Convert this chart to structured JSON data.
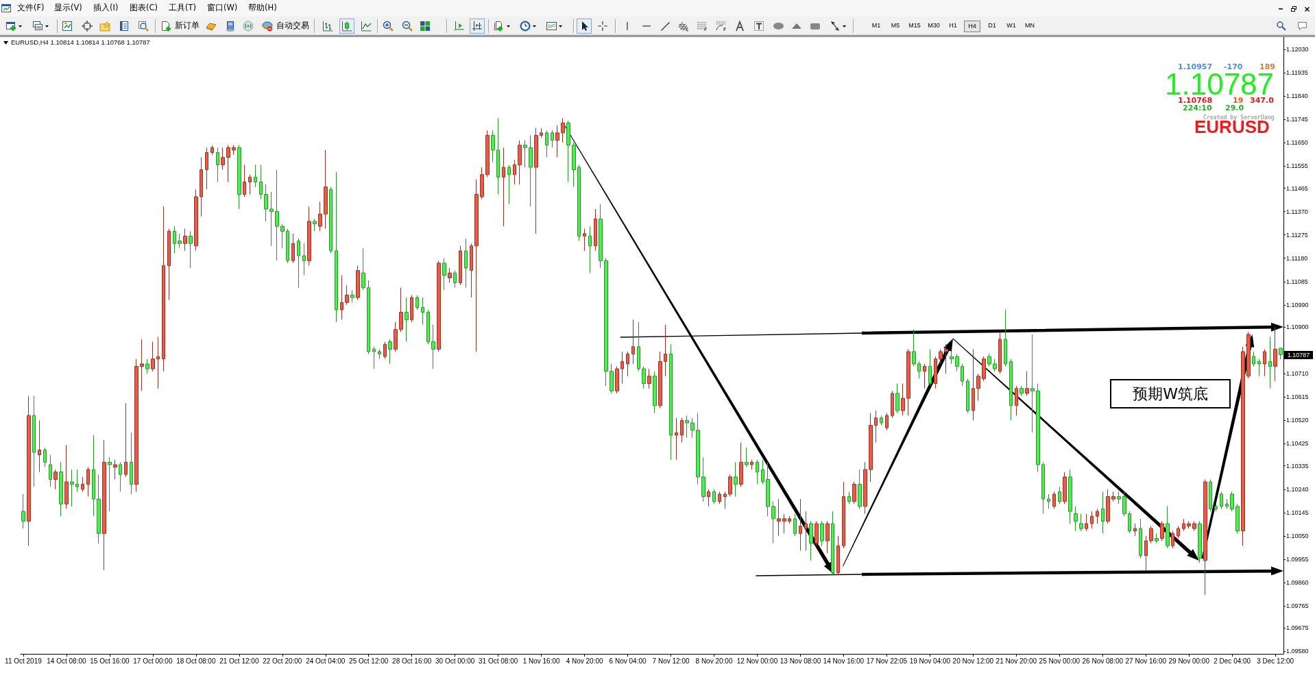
{
  "chart_data": {
    "type": "candlestick",
    "title": "EURUSD,H4 1.10814 1.10814 1.10768 1.10787",
    "categories": [
      "11 Oct 2019",
      null,
      null,
      null,
      null,
      null,
      null,
      null,
      "14 Oct 08:00",
      null,
      null,
      null,
      null,
      null,
      null,
      null,
      "15 Oct 16:00",
      null,
      null,
      null,
      null,
      null,
      null,
      null,
      "17 Oct 00:00",
      null,
      null,
      null,
      null,
      null,
      null,
      null,
      "18 Oct 08:00",
      null,
      null,
      null,
      null,
      null,
      null,
      null,
      "21 Oct 12:00",
      null,
      null,
      null,
      null,
      null,
      null,
      null,
      "22 Oct 20:00",
      null,
      null,
      null,
      null,
      null,
      null,
      null,
      "24 Oct 04:00",
      null,
      null,
      null,
      null,
      null,
      null,
      null,
      "25 Oct 12:00",
      null,
      null,
      null,
      null,
      null,
      null,
      null,
      "28 Oct 16:00",
      null,
      null,
      null,
      null,
      null,
      null,
      null,
      "30 Oct 00:00",
      null,
      null,
      null,
      null,
      null,
      null,
      null,
      "31 Oct 08:00",
      null,
      null,
      null,
      null,
      null,
      null,
      null,
      "1 Nov 16:00",
      null,
      null,
      null,
      null,
      null,
      null,
      null,
      "4 Nov 20:00",
      null,
      null,
      null,
      null,
      null,
      null,
      null,
      "6 Nov 04:00",
      null,
      null,
      null,
      null,
      null,
      null,
      null,
      "7 Nov 12:00",
      null,
      null,
      null,
      null,
      null,
      null,
      null,
      "8 Nov 20:00",
      null,
      null,
      null,
      null,
      null,
      null,
      null,
      "12 Nov 00:00",
      null,
      null,
      null,
      null,
      null,
      null,
      null,
      "13 Nov 08:00",
      null,
      null,
      null,
      null,
      null,
      null,
      null,
      "14 Nov 16:00",
      null,
      null,
      null,
      null,
      null,
      null,
      null,
      "17 Nov 22:05",
      null,
      null,
      null,
      null,
      null,
      null,
      null,
      "19 Nov 04:00",
      null,
      null,
      null,
      null,
      null,
      null,
      null,
      "20 Nov 12:00",
      null,
      null,
      null,
      null,
      null,
      null,
      null,
      "21 Nov 20:00",
      null,
      null,
      null,
      null,
      null,
      null,
      null,
      "25 Nov 00:00",
      null,
      null,
      null,
      null,
      null,
      null,
      null,
      "26 Nov 08:00",
      null,
      null,
      null,
      null,
      null,
      null,
      null,
      "27 Nov 16:00",
      null,
      null,
      null,
      null,
      null,
      null,
      null,
      "29 Nov 00:00",
      null,
      null,
      null,
      null,
      null,
      null,
      null,
      "2 Dec 04:00",
      null,
      null,
      null,
      null,
      null,
      null,
      null,
      "3 Dec 12:00",
      null
    ],
    "ohlc": [
      [
        1.1015,
        1.1022,
        1.1008,
        1.1011
      ],
      [
        1.1011,
        1.1062,
        1.1001,
        1.1054
      ],
      [
        1.1054,
        1.1062,
        1.1025,
        1.1039
      ],
      [
        1.1038,
        1.1052,
        1.1031,
        1.104
      ],
      [
        1.104,
        1.1041,
        1.1033,
        1.1035
      ],
      [
        1.1034,
        1.1038,
        1.1025,
        1.1028
      ],
      [
        1.1028,
        1.1032,
        1.1024,
        1.1031
      ],
      [
        1.1031,
        1.1035,
        1.1013,
        1.1018
      ],
      [
        1.1018,
        1.1042,
        1.1016,
        1.1027
      ],
      [
        1.1027,
        1.1032,
        1.1017,
        1.1026
      ],
      [
        1.1026,
        1.1032,
        1.1023,
        1.1025
      ],
      [
        1.1024,
        1.1029,
        1.1023,
        1.1026
      ],
      [
        1.1026,
        1.1033,
        1.1021,
        1.1032
      ],
      [
        1.1032,
        1.1046,
        1.1013,
        1.102
      ],
      [
        1.102,
        1.103,
        1.1002,
        1.1006
      ],
      [
        1.1006,
        1.1044,
        1.0991,
        1.1035
      ],
      [
        1.1035,
        1.1037,
        1.1015,
        1.1034
      ],
      [
        1.1033,
        1.1036,
        1.1028,
        1.1034
      ],
      [
        1.1034,
        1.1035,
        1.1023,
        1.103
      ],
      [
        1.103,
        1.1059,
        1.1029,
        1.1035
      ],
      [
        1.1035,
        1.1047,
        1.1022,
        1.1026
      ],
      [
        1.1026,
        1.1077,
        1.1023,
        1.1074
      ],
      [
        1.1074,
        1.1085,
        1.1064,
        1.1075
      ],
      [
        1.1075,
        1.1077,
        1.1071,
        1.1073
      ],
      [
        1.1073,
        1.1084,
        1.1072,
        1.1077
      ],
      [
        1.1077,
        1.1086,
        1.1065,
        1.1078
      ],
      [
        1.1077,
        1.1139,
        1.1072,
        1.1115
      ],
      [
        1.1115,
        1.113,
        1.1101,
        1.1129
      ],
      [
        1.1129,
        1.1131,
        1.112,
        1.1124
      ],
      [
        1.1125,
        1.1128,
        1.1122,
        1.1124
      ],
      [
        1.1124,
        1.113,
        1.1121,
        1.1127
      ],
      [
        1.1127,
        1.1129,
        1.1114,
        1.1124
      ],
      [
        1.1123,
        1.1146,
        1.1121,
        1.1143
      ],
      [
        1.1143,
        1.1159,
        1.1135,
        1.1154
      ],
      [
        1.1154,
        1.1163,
        1.1146,
        1.1161
      ],
      [
        1.1161,
        1.1164,
        1.116,
        1.1163
      ],
      [
        1.1161,
        1.1163,
        1.1149,
        1.1156
      ],
      [
        1.1156,
        1.1163,
        1.1154,
        1.1159
      ],
      [
        1.1159,
        1.1164,
        1.1149,
        1.1163
      ],
      [
        1.1162,
        1.1164,
        1.116,
        1.1163
      ],
      [
        1.1163,
        1.1164,
        1.1138,
        1.1144
      ],
      [
        1.1144,
        1.1156,
        1.1143,
        1.1149
      ],
      [
        1.1149,
        1.1152,
        1.1144,
        1.1151
      ],
      [
        1.1151,
        1.1156,
        1.1147,
        1.1149
      ],
      [
        1.1149,
        1.1156,
        1.1142,
        1.1144
      ],
      [
        1.1144,
        1.1148,
        1.1133,
        1.1138
      ],
      [
        1.1138,
        1.1145,
        1.1123,
        1.1137
      ],
      [
        1.1137,
        1.1154,
        1.1117,
        1.1131
      ],
      [
        1.1131,
        1.1132,
        1.1122,
        1.1129
      ],
      [
        1.1129,
        1.113,
        1.1116,
        1.1117
      ],
      [
        1.1117,
        1.1128,
        1.1116,
        1.1124
      ],
      [
        1.1125,
        1.1126,
        1.1106,
        1.1119
      ],
      [
        1.1119,
        1.1124,
        1.1111,
        1.1117
      ],
      [
        1.1117,
        1.1139,
        1.1115,
        1.1133
      ],
      [
        1.1133,
        1.1134,
        1.1129,
        1.1132
      ],
      [
        1.1131,
        1.1141,
        1.1129,
        1.1136
      ],
      [
        1.1136,
        1.1162,
        1.113,
        1.1147
      ],
      [
        1.1146,
        1.1147,
        1.112,
        1.1121
      ],
      [
        1.1121,
        1.1153,
        1.1092,
        1.1097
      ],
      [
        1.1097,
        1.1111,
        1.1093,
        1.11
      ],
      [
        1.11,
        1.1107,
        1.1099,
        1.1103
      ],
      [
        1.1103,
        1.1105,
        1.11,
        1.1102
      ],
      [
        1.1102,
        1.1115,
        1.1101,
        1.1113
      ],
      [
        1.1112,
        1.1122,
        1.1105,
        1.1106
      ],
      [
        1.1106,
        1.1109,
        1.1079,
        1.108
      ],
      [
        1.1081,
        1.1082,
        1.1073,
        1.108
      ],
      [
        1.108,
        1.1081,
        1.1077,
        1.1079
      ],
      [
        1.1078,
        1.1084,
        1.1077,
        1.1083
      ],
      [
        1.1084,
        1.1085,
        1.1075,
        1.1081
      ],
      [
        1.1081,
        1.1092,
        1.108,
        1.1089
      ],
      [
        1.1089,
        1.1106,
        1.1088,
        1.1096
      ],
      [
        1.1096,
        1.1102,
        1.1084,
        1.1093
      ],
      [
        1.1093,
        1.1103,
        1.1092,
        1.1102
      ],
      [
        1.1102,
        1.1103,
        1.1097,
        1.1098
      ],
      [
        1.1098,
        1.1102,
        1.1091,
        1.1096
      ],
      [
        1.1096,
        1.1097,
        1.1083,
        1.1084
      ],
      [
        1.1084,
        1.1091,
        1.1073,
        1.1081
      ],
      [
        1.1081,
        1.1117,
        1.108,
        1.1116
      ],
      [
        1.1116,
        1.1118,
        1.1105,
        1.1111
      ],
      [
        1.111,
        1.1114,
        1.1108,
        1.1112
      ],
      [
        1.1112,
        1.1113,
        1.1106,
        1.1108
      ],
      [
        1.1108,
        1.1123,
        1.1107,
        1.1121
      ],
      [
        1.1121,
        1.1126,
        1.1106,
        1.1114
      ],
      [
        1.1113,
        1.1124,
        1.1102,
        1.1123
      ],
      [
        1.1123,
        1.115,
        1.108,
        1.1144
      ],
      [
        1.1143,
        1.1155,
        1.1142,
        1.1152
      ],
      [
        1.1152,
        1.117,
        1.1151,
        1.1168
      ],
      [
        1.1168,
        1.117,
        1.1157,
        1.1162
      ],
      [
        1.1162,
        1.1175,
        1.1144,
        1.1151
      ],
      [
        1.1151,
        1.1163,
        1.1131,
        1.1155
      ],
      [
        1.1155,
        1.1156,
        1.114,
        1.1152
      ],
      [
        1.1152,
        1.1158,
        1.1148,
        1.1156
      ],
      [
        1.1156,
        1.1166,
        1.1148,
        1.1164
      ],
      [
        1.1164,
        1.1166,
        1.1155,
        1.1163
      ],
      [
        1.1163,
        1.1168,
        1.1139,
        1.1155
      ],
      [
        1.1155,
        1.1171,
        1.1128,
        1.1168
      ],
      [
        1.1168,
        1.1171,
        1.1167,
        1.1169
      ],
      [
        1.1169,
        1.117,
        1.1159,
        1.1164
      ],
      [
        1.1169,
        1.117,
        1.1163,
        1.1166
      ],
      [
        1.1166,
        1.1172,
        1.1159,
        1.1169
      ],
      [
        1.1169,
        1.1175,
        1.1165,
        1.1173
      ],
      [
        1.1173,
        1.1174,
        1.1149,
        1.1164
      ],
      [
        1.1164,
        1.1165,
        1.1147,
        1.1154
      ],
      [
        1.1155,
        1.1156,
        1.1125,
        1.1127
      ],
      [
        1.1127,
        1.113,
        1.1121,
        1.1128
      ],
      [
        1.1127,
        1.1131,
        1.1112,
        1.1123
      ],
      [
        1.1123,
        1.1138,
        1.1121,
        1.1134
      ],
      [
        1.1134,
        1.114,
        1.1114,
        1.1117
      ],
      [
        1.1117,
        1.1118,
        1.1066,
        1.1072
      ],
      [
        1.1072,
        1.1075,
        1.1063,
        1.1064
      ],
      [
        1.1064,
        1.1074,
        1.1063,
        1.1073
      ],
      [
        1.1073,
        1.108,
        1.1067,
        1.1076
      ],
      [
        1.1075,
        1.108,
        1.107,
        1.1079
      ],
      [
        1.1079,
        1.1093,
        1.1075,
        1.1082
      ],
      [
        1.1082,
        1.1092,
        1.1072,
        1.1073
      ],
      [
        1.1073,
        1.1074,
        1.1065,
        1.1067
      ],
      [
        1.1067,
        1.1073,
        1.1065,
        1.107
      ],
      [
        1.107,
        1.1072,
        1.1055,
        1.1058
      ],
      [
        1.1058,
        1.108,
        1.1057,
        1.1076
      ],
      [
        1.1076,
        1.1091,
        1.107,
        1.1079
      ],
      [
        1.1079,
        1.1083,
        1.1036,
        1.1046
      ],
      [
        1.1046,
        1.1053,
        1.1036,
        1.1047
      ],
      [
        1.1046,
        1.1053,
        1.1043,
        1.1052
      ],
      [
        1.1052,
        1.1054,
        1.1045,
        1.1051
      ],
      [
        1.1051,
        1.1053,
        1.1045,
        1.1048
      ],
      [
        1.1048,
        1.1055,
        1.1026,
        1.1029
      ],
      [
        1.1029,
        1.1037,
        1.1019,
        1.1021
      ],
      [
        1.1021,
        1.1024,
        1.1017,
        1.1023
      ],
      [
        1.1023,
        1.1024,
        1.1018,
        1.1019
      ],
      [
        1.1019,
        1.1023,
        1.1018,
        1.1022
      ],
      [
        1.1021,
        1.1023,
        1.1016,
        1.1022
      ],
      [
        1.1022,
        1.103,
        1.1021,
        1.1029
      ],
      [
        1.1029,
        1.1035,
        1.1021,
        1.1026
      ],
      [
        1.1026,
        1.1043,
        1.1025,
        1.1035
      ],
      [
        1.1035,
        1.1041,
        1.1033,
        1.1034
      ],
      [
        1.1034,
        1.1036,
        1.1032,
        1.1035
      ],
      [
        1.1035,
        1.1036,
        1.1026,
        1.1031
      ],
      [
        1.1032,
        1.1036,
        1.1026,
        1.1027
      ],
      [
        1.1028,
        1.1035,
        1.1013,
        1.1017
      ],
      [
        1.1017,
        1.1019,
        1.1002,
        1.1012
      ],
      [
        1.1011,
        1.102,
        1.1005,
        1.1012
      ],
      [
        1.1011,
        1.1014,
        1.1006,
        1.1012
      ],
      [
        1.1011,
        1.1013,
        1.101,
        1.1012
      ],
      [
        1.1012,
        1.1014,
        1.1005,
        1.1006
      ],
      [
        1.1006,
        1.102,
        1.0999,
        1.1009
      ],
      [
        1.1008,
        1.1015,
        1.0999,
        1.101
      ],
      [
        1.101,
        1.1011,
        1.0995,
        1.1002
      ],
      [
        1.1002,
        1.1011,
        1.1001,
        1.101
      ],
      [
        1.101,
        1.1011,
        1.1001,
        1.1003
      ],
      [
        1.1003,
        1.1011,
        1.0998,
        1.101
      ],
      [
        1.101,
        1.1015,
        1.0989,
        1.099
      ],
      [
        1.099,
        1.1005,
        1.0989,
        1.1001
      ],
      [
        1.1001,
        1.1027,
        1.1,
        1.1021
      ],
      [
        1.1021,
        1.1023,
        1.1018,
        1.1019
      ],
      [
        1.1019,
        1.1027,
        1.1018,
        1.1026
      ],
      [
        1.1026,
        1.1032,
        1.1016,
        1.1017
      ],
      [
        1.1017,
        1.1035,
        1.1014,
        1.1032
      ],
      [
        1.1032,
        1.1055,
        1.1027,
        1.105
      ],
      [
        1.105,
        1.1056,
        1.1043,
        1.1053
      ],
      [
        1.1053,
        1.1054,
        1.105,
        1.1051
      ],
      [
        1.1049,
        1.1055,
        1.1048,
        1.1054
      ],
      [
        1.1054,
        1.1064,
        1.1053,
        1.1063
      ],
      [
        1.1063,
        1.1067,
        1.1055,
        1.1056
      ],
      [
        1.1056,
        1.1067,
        1.1054,
        1.1061
      ],
      [
        1.1061,
        1.1081,
        1.1054,
        1.108
      ],
      [
        1.108,
        1.1089,
        1.1074,
        1.1075
      ],
      [
        1.1075,
        1.1076,
        1.1069,
        1.1072
      ],
      [
        1.1072,
        1.1075,
        1.1065,
        1.1074
      ],
      [
        1.1074,
        1.1081,
        1.1066,
        1.1067
      ],
      [
        1.1067,
        1.1078,
        1.1065,
        1.1077
      ],
      [
        1.1077,
        1.1081,
        1.1075,
        1.108
      ],
      [
        1.108,
        1.1083,
        1.1071,
        1.1081
      ],
      [
        1.1078,
        1.108,
        1.1075,
        1.1077
      ],
      [
        1.1078,
        1.1079,
        1.1072,
        1.1074
      ],
      [
        1.1074,
        1.1075,
        1.1066,
        1.1068
      ],
      [
        1.1068,
        1.1069,
        1.1055,
        1.1056
      ],
      [
        1.1056,
        1.1081,
        1.1052,
        1.1065
      ],
      [
        1.1065,
        1.1071,
        1.106,
        1.107
      ],
      [
        1.1069,
        1.1078,
        1.1068,
        1.1077
      ],
      [
        1.1078,
        1.1079,
        1.1074,
        1.1075
      ],
      [
        1.1075,
        1.1077,
        1.1072,
        1.1073
      ],
      [
        1.1072,
        1.1088,
        1.1071,
        1.1085
      ],
      [
        1.1085,
        1.1097,
        1.1074,
        1.1075
      ],
      [
        1.1076,
        1.1077,
        1.1052,
        1.1058
      ],
      [
        1.1058,
        1.1066,
        1.1054,
        1.1065
      ],
      [
        1.1065,
        1.1066,
        1.1062,
        1.1063
      ],
      [
        1.1063,
        1.1072,
        1.1062,
        1.1065
      ],
      [
        1.1065,
        1.1087,
        1.1047,
        1.1064
      ],
      [
        1.1064,
        1.1067,
        1.1031,
        1.1034
      ],
      [
        1.1034,
        1.1035,
        1.1014,
        1.102
      ],
      [
        1.102,
        1.1022,
        1.1016,
        1.1019
      ],
      [
        1.1017,
        1.1023,
        1.1016,
        1.1022
      ],
      [
        1.1023,
        1.1025,
        1.1018,
        1.1019
      ],
      [
        1.1019,
        1.1031,
        1.1018,
        1.1029
      ],
      [
        1.1029,
        1.1032,
        1.101,
        1.1015
      ],
      [
        1.1014,
        1.1017,
        1.1007,
        1.1011
      ],
      [
        1.101,
        1.1014,
        1.1007,
        1.1008
      ],
      [
        1.1008,
        1.1014,
        1.1007,
        1.101
      ],
      [
        1.101,
        1.1015,
        1.1008,
        1.1013
      ],
      [
        1.1013,
        1.1016,
        1.101,
        1.1015
      ],
      [
        1.1016,
        1.1023,
        1.1006,
        1.1011
      ],
      [
        1.1011,
        1.1024,
        1.101,
        1.1021
      ],
      [
        1.102,
        1.1023,
        1.1019,
        1.1021
      ],
      [
        1.1021,
        1.1023,
        1.1018,
        1.102
      ],
      [
        1.1021,
        1.1023,
        1.1013,
        1.1014
      ],
      [
        1.1014,
        1.1015,
        1.1006,
        1.1007
      ],
      [
        1.1007,
        1.101,
        1.1005,
        1.1008
      ],
      [
        1.1008,
        1.1012,
        1.0996,
        1.0997
      ],
      [
        1.0997,
        1.1005,
        1.0991,
        1.1003
      ],
      [
        1.1003,
        1.1009,
        1.1002,
        1.1008
      ],
      [
        1.1004,
        1.1006,
        1.1002,
        1.1003
      ],
      [
        1.1004,
        1.1011,
        1.1003,
        1.101
      ],
      [
        1.101,
        1.1017,
        1.1,
        1.1001
      ],
      [
        1.1001,
        1.1007,
        1.1,
        1.1006
      ],
      [
        1.1005,
        1.1009,
        1.1004,
        1.1008
      ],
      [
        1.1008,
        1.1012,
        1.1007,
        1.101
      ],
      [
        1.1009,
        1.1011,
        1.1008,
        1.101
      ],
      [
        1.1008,
        1.1011,
        1.1007,
        1.101
      ],
      [
        1.101,
        1.1011,
        1.0994,
        1.0996
      ],
      [
        1.0995,
        1.1028,
        1.0981,
        1.1027
      ],
      [
        1.1027,
        1.1028,
        1.1015,
        1.1016
      ],
      [
        1.1017,
        1.1018,
        1.1015,
        1.1016
      ],
      [
        1.1022,
        1.1023,
        1.1016,
        1.1017
      ],
      [
        1.1018,
        1.102,
        1.1016,
        1.1017
      ],
      [
        1.1022,
        1.1023,
        1.1015,
        1.1016
      ],
      [
        1.1017,
        1.1018,
        1.1006,
        1.1007
      ],
      [
        1.1007,
        1.1082,
        1.1001,
        1.108
      ],
      [
        1.107,
        1.1088,
        1.1069,
        1.1087
      ],
      [
        1.1078,
        1.108,
        1.1074,
        1.1075
      ],
      [
        1.1076,
        1.1077,
        1.107,
        1.1075
      ],
      [
        1.1075,
        1.1081,
        1.107,
        1.108
      ],
      [
        1.1076,
        1.1086,
        1.1065,
        1.1074
      ],
      [
        1.1074,
        1.109,
        1.1068,
        1.1081
      ],
      [
        1.10814,
        1.10814,
        1.10768,
        1.10787
      ]
    ],
    "colors": [
      "#4cf04c",
      "#ef5a45",
      "#4cf04c",
      "#ef5a45",
      "#4cf04c",
      "#4cf04c",
      "#ef5a45",
      "#4cf04c",
      "#ef5a45",
      "#4cf04c",
      "#4cf04c",
      "#ef5a45",
      "#ef5a45",
      "#4cf04c",
      "#4cf04c",
      "#ef5a45",
      "#4cf04c",
      "#ef5a45",
      "#4cf04c",
      "#ef5a45",
      "#4cf04c",
      "#ef5a45",
      "#ef5a45",
      "#4cf04c",
      "#ef5a45",
      "#ef5a45",
      "#ef5a45",
      "#ef5a45",
      "#4cf04c",
      "#4cf04c",
      "#ef5a45",
      "#4cf04c",
      "#ef5a45",
      "#ef5a45",
      "#ef5a45",
      "#ef5a45",
      "#4cf04c",
      "#ef5a45",
      "#ef5a45",
      "#ef5a45",
      "#4cf04c",
      "#ef5a45",
      "#ef5a45",
      "#4cf04c",
      "#4cf04c",
      "#4cf04c",
      "#4cf04c",
      "#4cf04c",
      "#4cf04c",
      "#4cf04c",
      "#ef5a45",
      "#4cf04c",
      "#4cf04c",
      "#ef5a45",
      "#4cf04c",
      "#ef5a45",
      "#ef5a45",
      "#4cf04c",
      "#4cf04c",
      "#ef5a45",
      "#ef5a45",
      "#4cf04c",
      "#ef5a45",
      "#4cf04c",
      "#4cf04c",
      "#4cf04c",
      "#4cf04c",
      "#ef5a45",
      "#4cf04c",
      "#ef5a45",
      "#ef5a45",
      "#4cf04c",
      "#ef5a45",
      "#4cf04c",
      "#4cf04c",
      "#4cf04c",
      "#4cf04c",
      "#ef5a45",
      "#4cf04c",
      "#ef5a45",
      "#4cf04c",
      "#ef5a45",
      "#4cf04c",
      "#ef5a45",
      "#ef5a45",
      "#ef5a45",
      "#ef5a45",
      "#4cf04c",
      "#4cf04c",
      "#ef5a45",
      "#4cf04c",
      "#ef5a45",
      "#ef5a45",
      "#4cf04c",
      "#4cf04c",
      "#ef5a45",
      "#ef5a45",
      "#4cf04c",
      "#4cf04c",
      "#ef5a45",
      "#ef5a45",
      "#4cf04c",
      "#4cf04c",
      "#4cf04c",
      "#ef5a45",
      "#4cf04c",
      "#ef5a45",
      "#4cf04c",
      "#4cf04c",
      "#4cf04c",
      "#ef5a45",
      "#ef5a45",
      "#ef5a45",
      "#ef5a45",
      "#4cf04c",
      "#4cf04c",
      "#ef5a45",
      "#4cf04c",
      "#ef5a45",
      "#ef5a45",
      "#4cf04c",
      "#ef5a45",
      "#ef5a45",
      "#4cf04c",
      "#4cf04c",
      "#4cf04c",
      "#4cf04c",
      "#ef5a45",
      "#4cf04c",
      "#ef5a45",
      "#ef5a45",
      "#ef5a45",
      "#4cf04c",
      "#ef5a45",
      "#4cf04c",
      "#ef5a45",
      "#4cf04c",
      "#4cf04c",
      "#4cf04c",
      "#4cf04c",
      "#ef5a45",
      "#ef5a45",
      "#ef5a45",
      "#4cf04c",
      "#ef5a45",
      "#ef5a45",
      "#4cf04c",
      "#ef5a45",
      "#4cf04c",
      "#ef5a45",
      "#4cf04c",
      "#ef5a45",
      "#ef5a45",
      "#4cf04c",
      "#ef5a45",
      "#4cf04c",
      "#ef5a45",
      "#ef5a45",
      "#ef5a45",
      "#4cf04c",
      "#ef5a45",
      "#ef5a45",
      "#4cf04c",
      "#ef5a45",
      "#ef5a45",
      "#4cf04c",
      "#4cf04c",
      "#ef5a45",
      "#4cf04c",
      "#ef5a45",
      "#ef5a45",
      "#ef5a45",
      "#4cf04c",
      "#4cf04c",
      "#4cf04c",
      "#4cf04c",
      "#ef5a45",
      "#ef5a45",
      "#ef5a45",
      "#4cf04c",
      "#4cf04c",
      "#ef5a45",
      "#4cf04c",
      "#4cf04c",
      "#ef5a45",
      "#4cf04c",
      "#ef5a45",
      "#4cf04c",
      "#4cf04c",
      "#4cf04c",
      "#4cf04c",
      "#ef5a45",
      "#4cf04c",
      "#ef5a45",
      "#4cf04c",
      "#4cf04c",
      "#4cf04c",
      "#ef5a45",
      "#ef5a45",
      "#ef5a45",
      "#4cf04c",
      "#ef5a45",
      "#ef5a45",
      "#4cf04c",
      "#4cf04c",
      "#4cf04c",
      "#ef5a45",
      "#4cf04c",
      "#ef5a45",
      "#ef5a45",
      "#4cf04c",
      "#ef5a45",
      "#4cf04c",
      "#ef5a45",
      "#ef5a45",
      "#ef5a45",
      "#ef5a45",
      "#ef5a45",
      "#4cf04c",
      "#ef5a45",
      "#4cf04c",
      "#4cf04c",
      "#4cf04c",
      "#4cf04c",
      "#4cf04c",
      "#4cf04c",
      "#ef5a45",
      "#ef5a45",
      "#4cf04c",
      "#4cf04c",
      "#ef5a45",
      "#4cf04c",
      "#ef5a45",
      "#4cf04c"
    ],
    "ylim": [
      1.0957,
      1.1208
    ],
    "yticks": [
      {
        "value": 1.0958,
        "label": "1.09580"
      },
      1.09675,
      1.09765,
      {
        "value": 1.0986,
        "label": "1.09860"
      },
      1.09955,
      {
        "value": 1.1005,
        "label": "1.10050"
      },
      1.10145,
      {
        "value": 1.1024,
        "label": "1.10240"
      },
      1.10335,
      1.10425,
      {
        "value": 1.1052,
        "label": "1.10520"
      },
      1.10615,
      {
        "value": 1.1071,
        "label": "1.10710"
      },
      {
        "value": 1.109,
        "label": "1.10900"
      },
      {
        "value": 1.1099,
        "label": "1.10990"
      },
      1.11085,
      {
        "value": 1.1118,
        "label": "1.11180"
      },
      1.11275,
      {
        "value": 1.1137,
        "label": "1.11370"
      },
      1.11465,
      1.11555,
      {
        "value": 1.1165,
        "label": "1.11650"
      },
      1.11745,
      {
        "value": 1.1184,
        "label": "1.11840"
      },
      1.11935,
      {
        "value": 1.1203,
        "label": "1.12030"
      }
    ],
    "annotations": [
      "文件(F)",
      "显示(V)",
      "插入(I)",
      "图表(C)",
      "工具(T)",
      "窗口(W)",
      "帮助(H)",
      "新订单",
      "自动交易",
      "M1",
      "M5",
      "M15",
      "M30",
      "H1",
      "H4",
      "D1",
      "W1",
      "MN",
      "1.10957",
      "-170",
      "189",
      "1.10787",
      "1.10768",
      "19",
      "347.0",
      "224:10",
      "29.0",
      "Created by ServerUang",
      "EURUSD",
      "预期W筑底",
      "1.10787"
    ]
  }
}
